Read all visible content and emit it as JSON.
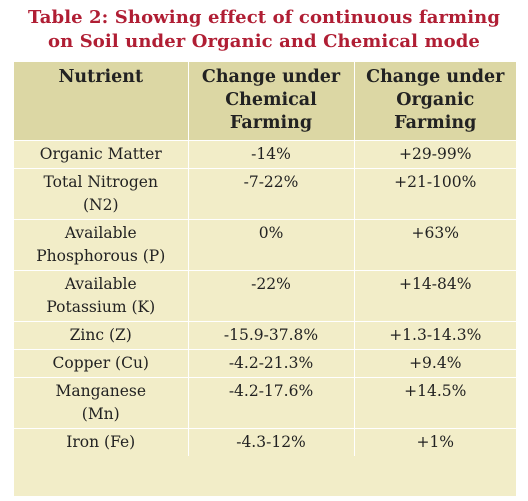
{
  "title": {
    "line1": "Table 2: Showing effect of continuous farming",
    "line2": "on Soil under Organic and Chemical mode"
  },
  "table": {
    "headers": [
      [
        "Nutrient"
      ],
      [
        "Change under",
        "Chemical",
        "Farming"
      ],
      [
        "Change under",
        "Organic",
        "Farming"
      ]
    ],
    "rows": [
      {
        "nutrient": [
          "Organic Matter"
        ],
        "chemical": "-14%",
        "organic": "+29-99%"
      },
      {
        "nutrient": [
          "Total Nitrogen",
          "(N2)"
        ],
        "chemical": "-7-22%",
        "organic": "+21-100%"
      },
      {
        "nutrient": [
          "Available",
          "Phosphorous (P)"
        ],
        "chemical": "0%",
        "organic": "+63%"
      },
      {
        "nutrient": [
          "Available",
          "Potassium (K)"
        ],
        "chemical": "-22%",
        "organic": "+14-84%"
      },
      {
        "nutrient": [
          "Zinc (Z)"
        ],
        "chemical": "-15.9-37.8%",
        "organic": "+1.3-14.3%"
      },
      {
        "nutrient": [
          "Copper (Cu)"
        ],
        "chemical": "-4.2-21.3%",
        "organic": "+9.4%"
      },
      {
        "nutrient": [
          "Manganese",
          "(Mn)"
        ],
        "chemical": "-4.2-17.6%",
        "organic": "+14.5%"
      },
      {
        "nutrient": [
          "Iron (Fe)"
        ],
        "chemical": "-4.3-12%",
        "organic": "+1%"
      }
    ]
  },
  "colors": {
    "title": "#b01e34",
    "header_bg": "#dcd7a4",
    "body_bg": "#f2edc8"
  }
}
